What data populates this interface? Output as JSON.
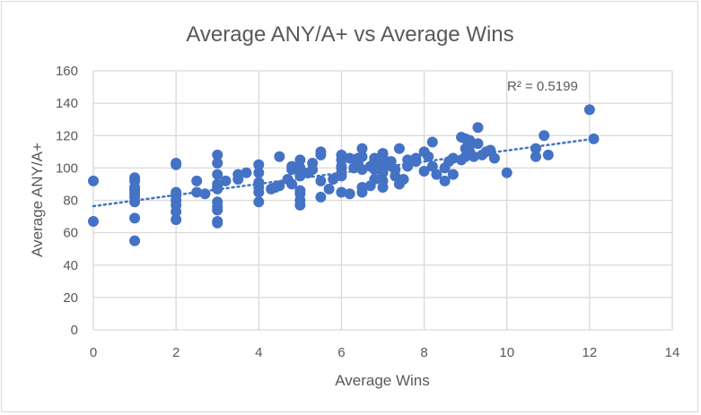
{
  "chart_data": {
    "type": "scatter",
    "title": "Average ANY/A+ vs Average Wins",
    "xlabel": "Average Wins",
    "ylabel": "Average ANY/A+",
    "xlim": [
      0,
      14
    ],
    "ylim": [
      0,
      160
    ],
    "xticks": [
      "0",
      "2",
      "4",
      "6",
      "8",
      "10",
      "12",
      "14"
    ],
    "yticks": [
      "0",
      "20",
      "40",
      "60",
      "80",
      "100",
      "120",
      "140",
      "160"
    ],
    "grid": true,
    "marker_color": "#4472C4",
    "trendline": {
      "type": "linear",
      "start": [
        0,
        76.4
      ],
      "end": [
        12.1,
        118
      ],
      "r2_label": "R² = 0.5199"
    },
    "points": [
      [
        0,
        92
      ],
      [
        0,
        67
      ],
      [
        1,
        94
      ],
      [
        1,
        92
      ],
      [
        1,
        88
      ],
      [
        1,
        86
      ],
      [
        1,
        84
      ],
      [
        1,
        82
      ],
      [
        1,
        79
      ],
      [
        1,
        69
      ],
      [
        1,
        55
      ],
      [
        2,
        103
      ],
      [
        2,
        102
      ],
      [
        2,
        85
      ],
      [
        2,
        83
      ],
      [
        2,
        80
      ],
      [
        2,
        77
      ],
      [
        2,
        73
      ],
      [
        2,
        68
      ],
      [
        2.5,
        92
      ],
      [
        2.5,
        85
      ],
      [
        2.7,
        84
      ],
      [
        3,
        108
      ],
      [
        3,
        103
      ],
      [
        3,
        96
      ],
      [
        3,
        90
      ],
      [
        3,
        88
      ],
      [
        3,
        87
      ],
      [
        3,
        79
      ],
      [
        3,
        76
      ],
      [
        3,
        74
      ],
      [
        3,
        67
      ],
      [
        3,
        66
      ],
      [
        3.2,
        92
      ],
      [
        3.5,
        96
      ],
      [
        3.5,
        93
      ],
      [
        3.7,
        97
      ],
      [
        4,
        102
      ],
      [
        4,
        97
      ],
      [
        4,
        91
      ],
      [
        4,
        88
      ],
      [
        4,
        85
      ],
      [
        4,
        79
      ],
      [
        4.3,
        87
      ],
      [
        4.5,
        107
      ],
      [
        4.5,
        89
      ],
      [
        4.4,
        88
      ],
      [
        4.7,
        93
      ],
      [
        4.8,
        101
      ],
      [
        4.8,
        99
      ],
      [
        4.8,
        90
      ],
      [
        5,
        105
      ],
      [
        5,
        100
      ],
      [
        5,
        95
      ],
      [
        5,
        86
      ],
      [
        5,
        84
      ],
      [
        5,
        80
      ],
      [
        5,
        77
      ],
      [
        5.2,
        97
      ],
      [
        5.3,
        103
      ],
      [
        5.3,
        99
      ],
      [
        5.5,
        110
      ],
      [
        5.5,
        108
      ],
      [
        5.5,
        92
      ],
      [
        5.5,
        82
      ],
      [
        5.7,
        87
      ],
      [
        5.8,
        93
      ],
      [
        6,
        108
      ],
      [
        6,
        105
      ],
      [
        6,
        101
      ],
      [
        6,
        100
      ],
      [
        6,
        97
      ],
      [
        6,
        95
      ],
      [
        6,
        85
      ],
      [
        6.2,
        84
      ],
      [
        6.2,
        106
      ],
      [
        6.3,
        100
      ],
      [
        6.4,
        106
      ],
      [
        6.4,
        103
      ],
      [
        6.5,
        112
      ],
      [
        6.5,
        107
      ],
      [
        6.5,
        99
      ],
      [
        6.5,
        88
      ],
      [
        6.5,
        85
      ],
      [
        6.7,
        89
      ],
      [
        6.7,
        101
      ],
      [
        6.8,
        106
      ],
      [
        6.8,
        104
      ],
      [
        6.8,
        99
      ],
      [
        6.8,
        93
      ],
      [
        7,
        109
      ],
      [
        7,
        107
      ],
      [
        7,
        105
      ],
      [
        7,
        103
      ],
      [
        7,
        100
      ],
      [
        7,
        97
      ],
      [
        7,
        92
      ],
      [
        7,
        88
      ],
      [
        7.2,
        104
      ],
      [
        7.2,
        101
      ],
      [
        7.3,
        99
      ],
      [
        7.3,
        95
      ],
      [
        7.4,
        112
      ],
      [
        7.4,
        90
      ],
      [
        7.5,
        93
      ],
      [
        7.6,
        105
      ],
      [
        7.6,
        101
      ],
      [
        7.8,
        106
      ],
      [
        7.8,
        104
      ],
      [
        8,
        110
      ],
      [
        8,
        98
      ],
      [
        8.1,
        107
      ],
      [
        8.2,
        116
      ],
      [
        8.2,
        101
      ],
      [
        8.3,
        96
      ],
      [
        8.5,
        100
      ],
      [
        8.5,
        92
      ],
      [
        8.6,
        104
      ],
      [
        8.7,
        96
      ],
      [
        8.7,
        106
      ],
      [
        8.9,
        105
      ],
      [
        8.9,
        119
      ],
      [
        9,
        118
      ],
      [
        9,
        112
      ],
      [
        9,
        107
      ],
      [
        9.1,
        117
      ],
      [
        9.1,
        114
      ],
      [
        9.1,
        110
      ],
      [
        9.2,
        107
      ],
      [
        9.3,
        125
      ],
      [
        9.3,
        115
      ],
      [
        9.4,
        108
      ],
      [
        9.5,
        110
      ],
      [
        9.6,
        111
      ],
      [
        9.7,
        106
      ],
      [
        10,
        97
      ],
      [
        10.7,
        112
      ],
      [
        10.7,
        107
      ],
      [
        10.9,
        120
      ],
      [
        11,
        108
      ],
      [
        12,
        136
      ],
      [
        12.1,
        118
      ]
    ]
  }
}
